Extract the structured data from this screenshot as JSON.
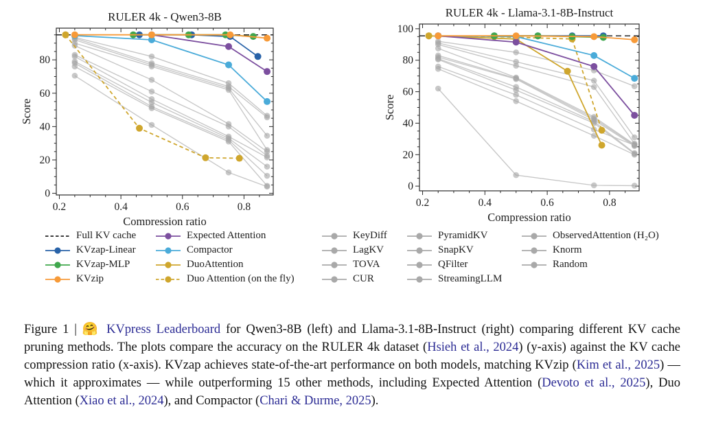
{
  "chart_data": [
    {
      "type": "line",
      "title": "RULER 4k - Qwen3-8B",
      "xlabel": "Compression ratio",
      "ylabel": "Score",
      "xlim": [
        0.19,
        0.895
      ],
      "ylim": [
        -1,
        99
      ],
      "xticks": [
        0.2,
        0.4,
        0.6,
        0.8
      ],
      "yticks": [
        0,
        20,
        40,
        60,
        80
      ],
      "grid": false,
      "series": [
        {
          "name": "KeyDiff",
          "gray": true,
          "x": [
            0.25,
            0.5,
            0.75,
            0.875
          ],
          "y": [
            93.5,
            82,
            66,
            46.5
          ]
        },
        {
          "name": "LagKV",
          "gray": true,
          "x": [
            0.25,
            0.5,
            0.75,
            0.875
          ],
          "y": [
            93,
            78,
            64,
            45.5
          ]
        },
        {
          "name": "TOVA",
          "gray": true,
          "x": [
            0.25,
            0.5,
            0.75,
            0.875
          ],
          "y": [
            92,
            77,
            63,
            34.5
          ]
        },
        {
          "name": "CUR",
          "gray": true,
          "x": [
            0.25,
            0.5,
            0.75,
            0.875
          ],
          "y": [
            90,
            76,
            62,
            26
          ]
        },
        {
          "name": "PyramidKV",
          "gray": true,
          "x": [
            0.25,
            0.5,
            0.75,
            0.875
          ],
          "y": [
            88.5,
            68,
            41.5,
            25
          ]
        },
        {
          "name": "SnapKV",
          "gray": true,
          "x": [
            0.25,
            0.5,
            0.75,
            0.875
          ],
          "y": [
            83,
            61,
            40,
            22.5
          ]
        },
        {
          "name": "QFilter",
          "gray": true,
          "x": [
            0.25,
            0.5,
            0.75,
            0.875
          ],
          "y": [
            82,
            56.5,
            34,
            21.5
          ]
        },
        {
          "name": "StreamingLLM",
          "gray": true,
          "x": [
            0.25,
            0.5,
            0.75,
            0.875
          ],
          "y": [
            79,
            54.5,
            33,
            16
          ]
        },
        {
          "name": "ObservedAttention (H₂O)",
          "gray": true,
          "x": [
            0.25,
            0.5,
            0.75,
            0.875
          ],
          "y": [
            78,
            52,
            32,
            10.5
          ]
        },
        {
          "name": "Knorm",
          "gray": true,
          "x": [
            0.25,
            0.5,
            0.75,
            0.875
          ],
          "y": [
            76,
            51,
            31,
            4.5
          ]
        },
        {
          "name": "Random",
          "gray": true,
          "x": [
            0.25,
            0.5,
            0.75,
            0.875
          ],
          "y": [
            70.5,
            41,
            12.5,
            4
          ]
        },
        {
          "name": "Full KV cache",
          "ref": true,
          "dash": true,
          "color": "#222222",
          "x": [
            0.19,
            0.895
          ],
          "y": [
            95,
            95
          ]
        },
        {
          "name": "Duo Attention (on the fly)",
          "color": "#cfa62d",
          "dash": true,
          "x": [
            0.22,
            0.46,
            0.675,
            0.785
          ],
          "y": [
            95,
            39,
            21.3,
            21
          ]
        },
        {
          "name": "DuoAttention",
          "color": "#cfa62d",
          "x": [
            0.22
          ],
          "y": [
            95
          ]
        },
        {
          "name": "Compactor",
          "color": "#4aabd9",
          "x": [
            0.25,
            0.5,
            0.75,
            0.875
          ],
          "y": [
            94.5,
            92,
            77,
            55
          ]
        },
        {
          "name": "Expected Attention",
          "color": "#7c4f9f",
          "x": [
            0.5,
            0.75,
            0.875
          ],
          "y": [
            95,
            88,
            73
          ]
        },
        {
          "name": "KVzap-Linear",
          "color": "#2862a8",
          "x": [
            0.46,
            0.63,
            0.755,
            0.845
          ],
          "y": [
            95,
            95,
            94,
            82
          ]
        },
        {
          "name": "KVzap-MLP",
          "color": "#3fa74c",
          "x": [
            0.44,
            0.62,
            0.74,
            0.83
          ],
          "y": [
            95,
            95,
            95,
            94
          ]
        },
        {
          "name": "KVzip",
          "color": "#f79a38",
          "x": [
            0.25,
            0.5,
            0.755,
            0.875
          ],
          "y": [
            95,
            95,
            95,
            93
          ]
        }
      ]
    },
    {
      "type": "line",
      "title": "RULER 4k - Llama-3.1-8B-Instruct",
      "xlabel": "Compression ratio",
      "ylabel": "Score",
      "xlim": [
        0.19,
        0.895
      ],
      "ylim": [
        -3,
        103
      ],
      "xticks": [
        0.2,
        0.4,
        0.6,
        0.8
      ],
      "yticks": [
        0,
        20,
        40,
        60,
        80,
        100
      ],
      "grid": false,
      "series": [
        {
          "name": "KeyDiff",
          "gray": true,
          "x": [
            0.25,
            0.5,
            0.75,
            0.88
          ],
          "y": [
            92,
            85,
            73.5,
            63.5
          ]
        },
        {
          "name": "LagKV",
          "gray": true,
          "x": [
            0.25,
            0.5,
            0.75,
            0.88
          ],
          "y": [
            91,
            79,
            67,
            31
          ]
        },
        {
          "name": "TOVA",
          "gray": true,
          "x": [
            0.25,
            0.5,
            0.75,
            0.88
          ],
          "y": [
            90,
            76.5,
            63,
            27
          ]
        },
        {
          "name": "CUR",
          "gray": true,
          "x": [
            0.25,
            0.5,
            0.75,
            0.88
          ],
          "y": [
            87.5,
            69,
            44,
            26.5
          ]
        },
        {
          "name": "PyramidKV",
          "gray": true,
          "x": [
            0.25,
            0.5,
            0.75,
            0.88
          ],
          "y": [
            83,
            68.5,
            43,
            26
          ]
        },
        {
          "name": "SnapKV",
          "gray": true,
          "x": [
            0.25,
            0.5,
            0.75,
            0.88
          ],
          "y": [
            82,
            68,
            42,
            25.5
          ]
        },
        {
          "name": "QFilter",
          "gray": true,
          "x": [
            0.25,
            0.5,
            0.75,
            0.88
          ],
          "y": [
            81,
            63,
            41,
            21
          ]
        },
        {
          "name": "StreamingLLM",
          "gray": true,
          "x": [
            0.25,
            0.5,
            0.75,
            0.88
          ],
          "y": [
            80.5,
            61,
            40,
            20.5
          ]
        },
        {
          "name": "ObservedAttention (H₂O)",
          "gray": true,
          "x": [
            0.25,
            0.5,
            0.75,
            0.88
          ],
          "y": [
            76,
            58,
            36,
            26
          ]
        },
        {
          "name": "Knorm",
          "gray": true,
          "x": [
            0.25,
            0.5,
            0.75,
            0.88
          ],
          "y": [
            74.5,
            54,
            32,
            20
          ]
        },
        {
          "name": "Random",
          "gray": true,
          "x": [
            0.25,
            0.5,
            0.75,
            0.88
          ],
          "y": [
            62,
            7,
            0.5,
            0.3
          ]
        },
        {
          "name": "Full KV cache",
          "ref": true,
          "dash": true,
          "color": "#222222",
          "x": [
            0.19,
            0.895
          ],
          "y": [
            95.5,
            95.5
          ]
        },
        {
          "name": "Duo Attention (on the fly)",
          "color": "#cfa62d",
          "dash": true,
          "x": [
            0.22,
            0.43,
            0.68,
            0.775
          ],
          "y": [
            95.5,
            95,
            93.5,
            35.5
          ]
        },
        {
          "name": "DuoAttention",
          "color": "#cfa62d",
          "x": [
            0.22,
            0.5,
            0.665,
            0.775
          ],
          "y": [
            95.5,
            93.5,
            73,
            26
          ]
        },
        {
          "name": "Compactor",
          "color": "#4aabd9",
          "x": [
            0.25,
            0.5,
            0.75,
            0.88
          ],
          "y": [
            95.5,
            95,
            83,
            68.5
          ]
        },
        {
          "name": "Expected Attention",
          "color": "#7c4f9f",
          "x": [
            0.25,
            0.5,
            0.75,
            0.88
          ],
          "y": [
            95.5,
            91.5,
            76,
            45
          ]
        },
        {
          "name": "KVzap-Linear",
          "color": "#2862a8",
          "x": [
            0.43,
            0.57,
            0.68,
            0.78
          ],
          "y": [
            95.5,
            95.5,
            95.5,
            95.5
          ]
        },
        {
          "name": "KVzap-MLP",
          "color": "#3fa74c",
          "x": [
            0.43,
            0.57,
            0.68,
            0.78
          ],
          "y": [
            95.5,
            95.5,
            95,
            94.5
          ]
        },
        {
          "name": "KVzip",
          "color": "#f79a38",
          "x": [
            0.25,
            0.5,
            0.75,
            0.88
          ],
          "y": [
            95.5,
            95.5,
            95,
            93
          ]
        }
      ]
    }
  ],
  "legend": {
    "columns": [
      [
        {
          "label": "Full KV cache",
          "color": "#222222",
          "dash": true,
          "marker": false
        },
        {
          "label": "KVzap-Linear",
          "color": "#2862a8"
        },
        {
          "label": "KVzap-MLP",
          "color": "#3fa74c"
        },
        {
          "label": "KVzip",
          "color": "#f79a38"
        }
      ],
      [
        {
          "label": "Expected Attention",
          "color": "#7c4f9f"
        },
        {
          "label": "Compactor",
          "color": "#4aabd9"
        },
        {
          "label": "DuoAttention",
          "color": "#cfa62d"
        },
        {
          "label": "Duo Attention (on the fly)",
          "color": "#cfa62d",
          "dash": true
        }
      ],
      [
        {
          "label": "KeyDiff",
          "color": "#a9a9a9"
        },
        {
          "label": "LagKV",
          "color": "#a9a9a9"
        },
        {
          "label": "TOVA",
          "color": "#a9a9a9"
        },
        {
          "label": "CUR",
          "color": "#a9a9a9"
        }
      ],
      [
        {
          "label": "PyramidKV",
          "color": "#a9a9a9"
        },
        {
          "label": "SnapKV",
          "color": "#a9a9a9"
        },
        {
          "label": "QFilter",
          "color": "#a9a9a9"
        },
        {
          "label": "StreamingLLM",
          "color": "#a9a9a9"
        }
      ],
      [
        {
          "label": "ObservedAttention (H₂O)",
          "color": "#a9a9a9"
        },
        {
          "label": "Knorm",
          "color": "#a9a9a9"
        },
        {
          "label": "Random",
          "color": "#a9a9a9"
        }
      ]
    ]
  },
  "caption": {
    "link_color": "#2b2b94",
    "parts": [
      {
        "t": "Figure 1 | ",
        "link": false
      },
      {
        "t": "🤗 ",
        "link": false,
        "emoji": true
      },
      {
        "t": "KVpress Leaderboard",
        "link": true
      },
      {
        "t": " for Qwen3-8B (left) and Llama-3.1-8B-Instruct (right) comparing different KV cache pruning methods. The plots compare the accuracy on the RULER 4k dataset (",
        "link": false
      },
      {
        "t": "Hsieh et al., 2024",
        "link": true
      },
      {
        "t": ") (y-axis) against the KV cache compression ratio (x-axis). KVzap achieves state-of-the-art performance on both models, matching KVzip (",
        "link": false
      },
      {
        "t": "Kim et al., 2025",
        "link": true
      },
      {
        "t": ") — which it approximates — while outperforming 15 other methods, including Expected Attention (",
        "link": false
      },
      {
        "t": "Devoto et al., 2025",
        "link": true
      },
      {
        "t": "), Duo Attention (",
        "link": false
      },
      {
        "t": "Xiao et al., 2024",
        "link": true
      },
      {
        "t": "), and Compactor (",
        "link": false
      },
      {
        "t": "Chari & Durme, 2025",
        "link": true
      },
      {
        "t": ").",
        "link": false
      }
    ]
  }
}
